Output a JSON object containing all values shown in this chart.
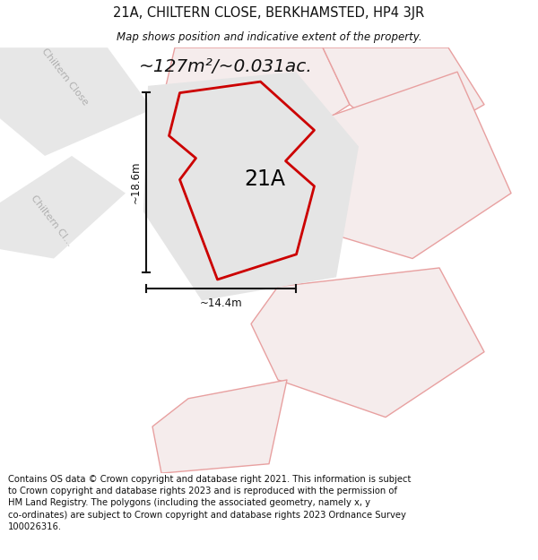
{
  "title_line1": "21A, CHILTERN CLOSE, BERKHAMSTED, HP4 3JR",
  "title_line2": "Map shows position and indicative extent of the property.",
  "area_text": "~127m²/~0.031ac.",
  "label_21A": "21A",
  "label_height": "~18.6m",
  "label_width": "~14.4m",
  "road_label_upper": "Chiltern Close",
  "road_label_lower": "Chiltern Cl...",
  "footer": "Contains OS data © Crown copyright and database right 2021. This information is subject to Crown copyright and database rights 2023 and is reproduced with the permission of HM Land Registry. The polygons (including the associated geometry, namely x, y co-ordinates) are subject to Crown copyright and database rights 2023 Ordnance Survey 100026316.",
  "bg_color": "#ffffff",
  "plot_fill": "#e5e5e5",
  "plot_stroke": "#cc0000",
  "neighbor_fill": "#f5ecec",
  "neighbor_stroke": "#e8a0a0",
  "road_fill": "#d8d8d8",
  "road_label_color": "#b0b0b0",
  "dimension_color": "#111111",
  "title_color": "#111111",
  "footer_color": "#111111"
}
